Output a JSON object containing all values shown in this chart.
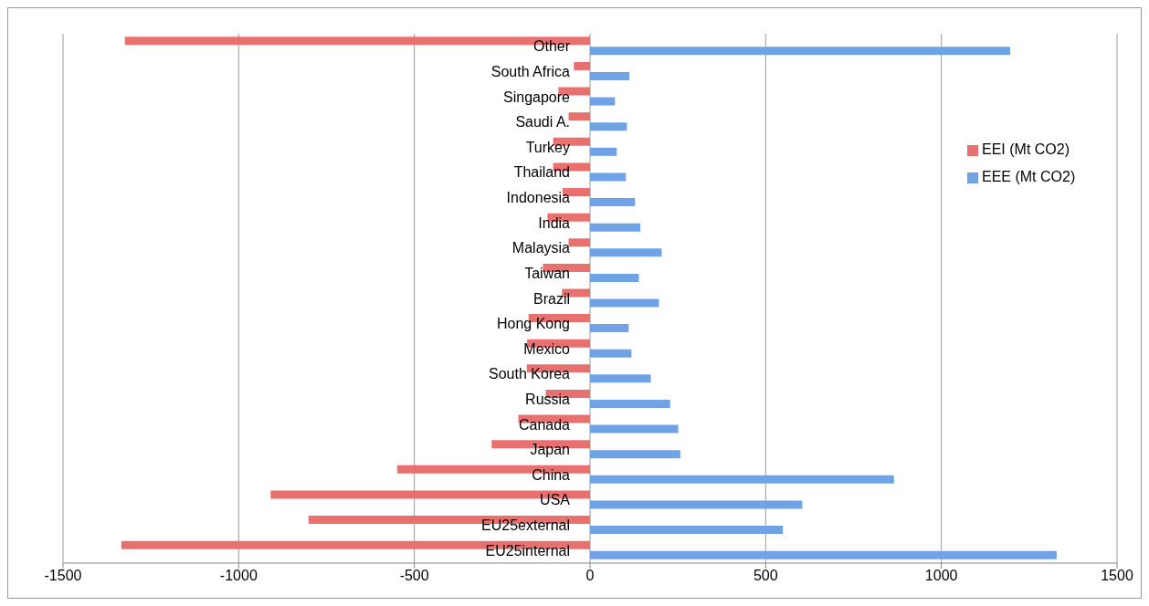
{
  "chart_data": {
    "type": "bar",
    "orientation": "horizontal",
    "categories": [
      "Other",
      "South Africa",
      "Singapore",
      "Saudi A.",
      "Turkey",
      "Thailand",
      "Indonesia",
      "India",
      "Malaysia",
      "Taiwan",
      "Brazil",
      "Hong Kong",
      "Mexico",
      "South Korea",
      "Russia",
      "Canada",
      "Japan",
      "China",
      "USA",
      "EU25external",
      "EU25internal"
    ],
    "series": [
      {
        "name": "EEI (Mt CO2)",
        "color": "#e8706f",
        "values": [
          -1324,
          -46,
          -90,
          -61,
          -105,
          -105,
          -78,
          -121,
          -61,
          -134,
          -80,
          -175,
          -179,
          -180,
          -126,
          -204,
          -280,
          -549,
          -909,
          -801,
          -1334
        ]
      },
      {
        "name": "EEE (Mt CO2)",
        "color": "#6fa3e6",
        "values": [
          1196,
          112,
          71,
          105,
          76,
          102,
          128,
          143,
          204,
          139,
          196,
          110,
          118,
          173,
          228,
          251,
          257,
          865,
          604,
          549,
          1328
        ]
      }
    ],
    "xlim": [
      -1500,
      1500
    ],
    "xticks": [
      -1500,
      -1000,
      -500,
      0,
      500,
      1000,
      1500
    ],
    "grid": "x",
    "legend": "right"
  }
}
